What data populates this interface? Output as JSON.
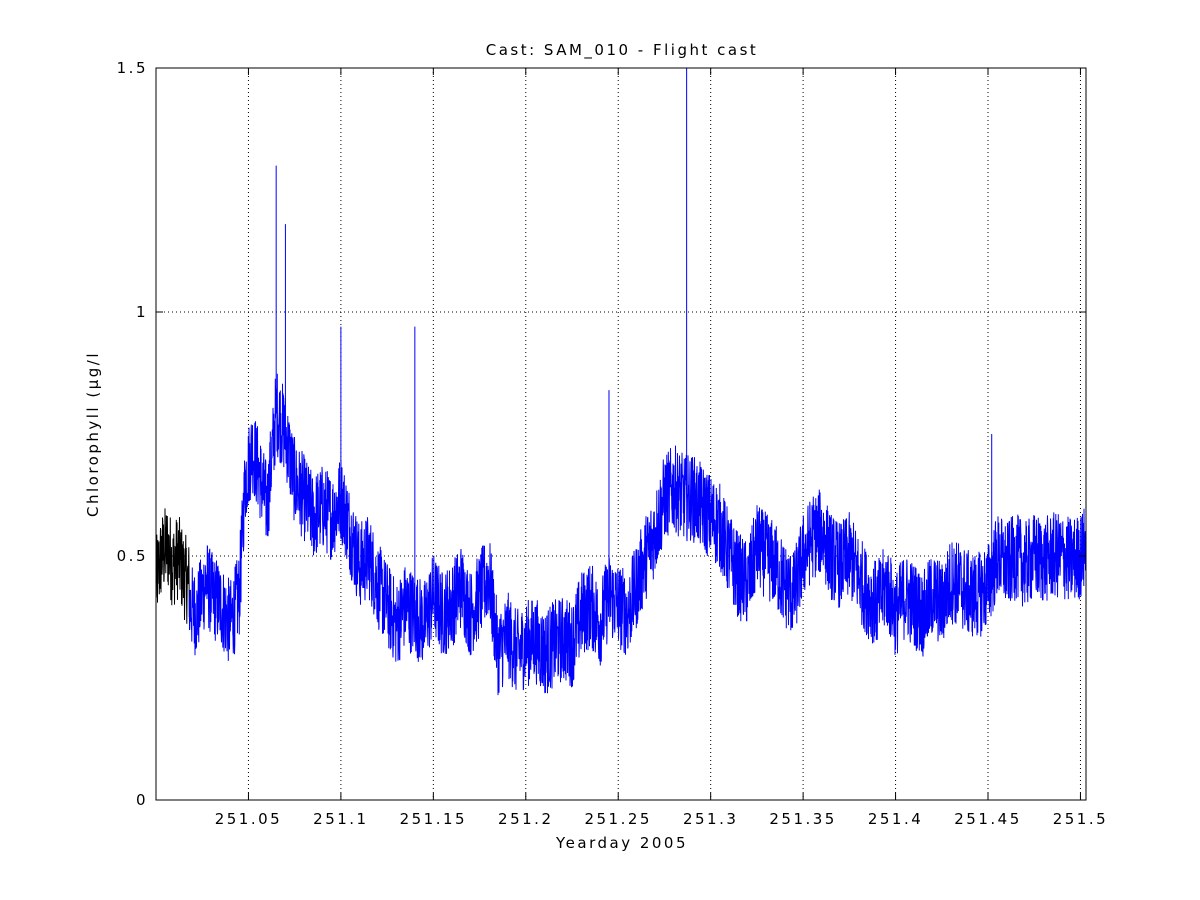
{
  "chart_data": {
    "type": "line",
    "title": "Cast: SAM_010 - Flight cast",
    "xlabel": "Yearday 2005",
    "ylabel": "Chlorophyll (μg/l",
    "xlim": [
      251.0,
      251.503
    ],
    "ylim": [
      0,
      1.5
    ],
    "grid": true,
    "x_ticks": [
      251.05,
      251.1,
      251.15,
      251.2,
      251.25,
      251.3,
      251.35,
      251.4,
      251.45,
      251.5
    ],
    "x_tick_labels": [
      "251.05",
      "251.1",
      "251.15",
      "251.2",
      "251.25",
      "251.3",
      "251.35",
      "251.4",
      "251.45",
      "251.5"
    ],
    "y_ticks": [
      0,
      0.5,
      1,
      1.5
    ],
    "y_tick_labels": [
      "0",
      "0.5",
      "1",
      "1.5"
    ],
    "series": [
      {
        "color": "#000000",
        "x": [
          251.0,
          251.003,
          251.006,
          251.009,
          251.012,
          251.015,
          251.018
        ],
        "y": [
          0.45,
          0.5,
          0.52,
          0.48,
          0.5,
          0.46,
          0.44
        ],
        "noise": 0.09
      },
      {
        "color": "#0000ff",
        "x": [
          251.018,
          251.022,
          251.027,
          251.03,
          251.035,
          251.04,
          251.045,
          251.048,
          251.052,
          251.055,
          251.06,
          251.065,
          251.07,
          251.075,
          251.08,
          251.085,
          251.09,
          251.095,
          251.1,
          251.105,
          251.11,
          251.115,
          251.12,
          251.125,
          251.13,
          251.135,
          251.14,
          251.145,
          251.15,
          251.155,
          251.16,
          251.165,
          251.17,
          251.175,
          251.18,
          251.185,
          251.19,
          251.195,
          251.2,
          251.205,
          251.21,
          251.215,
          251.22,
          251.225,
          251.23,
          251.235,
          251.24,
          251.245,
          251.25,
          251.255,
          251.26,
          251.265,
          251.27,
          251.275,
          251.28,
          251.285,
          251.29,
          251.295,
          251.3,
          251.305,
          251.31,
          251.315,
          251.32,
          251.325,
          251.33,
          251.335,
          251.34,
          251.345,
          251.35,
          251.355,
          251.36,
          251.365,
          251.37,
          251.375,
          251.38,
          251.385,
          251.39,
          251.395,
          251.4,
          251.405,
          251.41,
          251.415,
          251.42,
          251.425,
          251.43,
          251.435,
          251.44,
          251.445,
          251.45,
          251.455,
          251.46,
          251.465,
          251.47,
          251.475,
          251.48,
          251.485,
          251.49,
          251.495,
          251.5,
          251.503
        ],
        "y": [
          0.4,
          0.38,
          0.45,
          0.42,
          0.4,
          0.36,
          0.42,
          0.65,
          0.72,
          0.68,
          0.6,
          0.8,
          0.75,
          0.65,
          0.62,
          0.58,
          0.6,
          0.58,
          0.62,
          0.55,
          0.48,
          0.5,
          0.44,
          0.4,
          0.36,
          0.4,
          0.38,
          0.36,
          0.42,
          0.38,
          0.4,
          0.44,
          0.38,
          0.42,
          0.46,
          0.3,
          0.34,
          0.3,
          0.32,
          0.33,
          0.3,
          0.32,
          0.33,
          0.32,
          0.38,
          0.4,
          0.36,
          0.42,
          0.4,
          0.38,
          0.44,
          0.5,
          0.55,
          0.62,
          0.64,
          0.62,
          0.62,
          0.6,
          0.58,
          0.56,
          0.5,
          0.46,
          0.44,
          0.52,
          0.5,
          0.48,
          0.44,
          0.42,
          0.5,
          0.54,
          0.55,
          0.5,
          0.48,
          0.5,
          0.46,
          0.42,
          0.4,
          0.44,
          0.38,
          0.42,
          0.4,
          0.38,
          0.42,
          0.4,
          0.45,
          0.44,
          0.42,
          0.42,
          0.44,
          0.5,
          0.48,
          0.5,
          0.48,
          0.5,
          0.49,
          0.5,
          0.5,
          0.49,
          0.5,
          0.52
        ],
        "noise": 0.09,
        "spikes": [
          {
            "x": 251.065,
            "y": 1.3
          },
          {
            "x": 251.07,
            "y": 1.18
          },
          {
            "x": 251.1,
            "y": 0.97
          },
          {
            "x": 251.14,
            "y": 0.97
          },
          {
            "x": 251.245,
            "y": 0.84
          },
          {
            "x": 251.287,
            "y": 1.5
          },
          {
            "x": 251.452,
            "y": 0.75
          }
        ]
      }
    ]
  }
}
